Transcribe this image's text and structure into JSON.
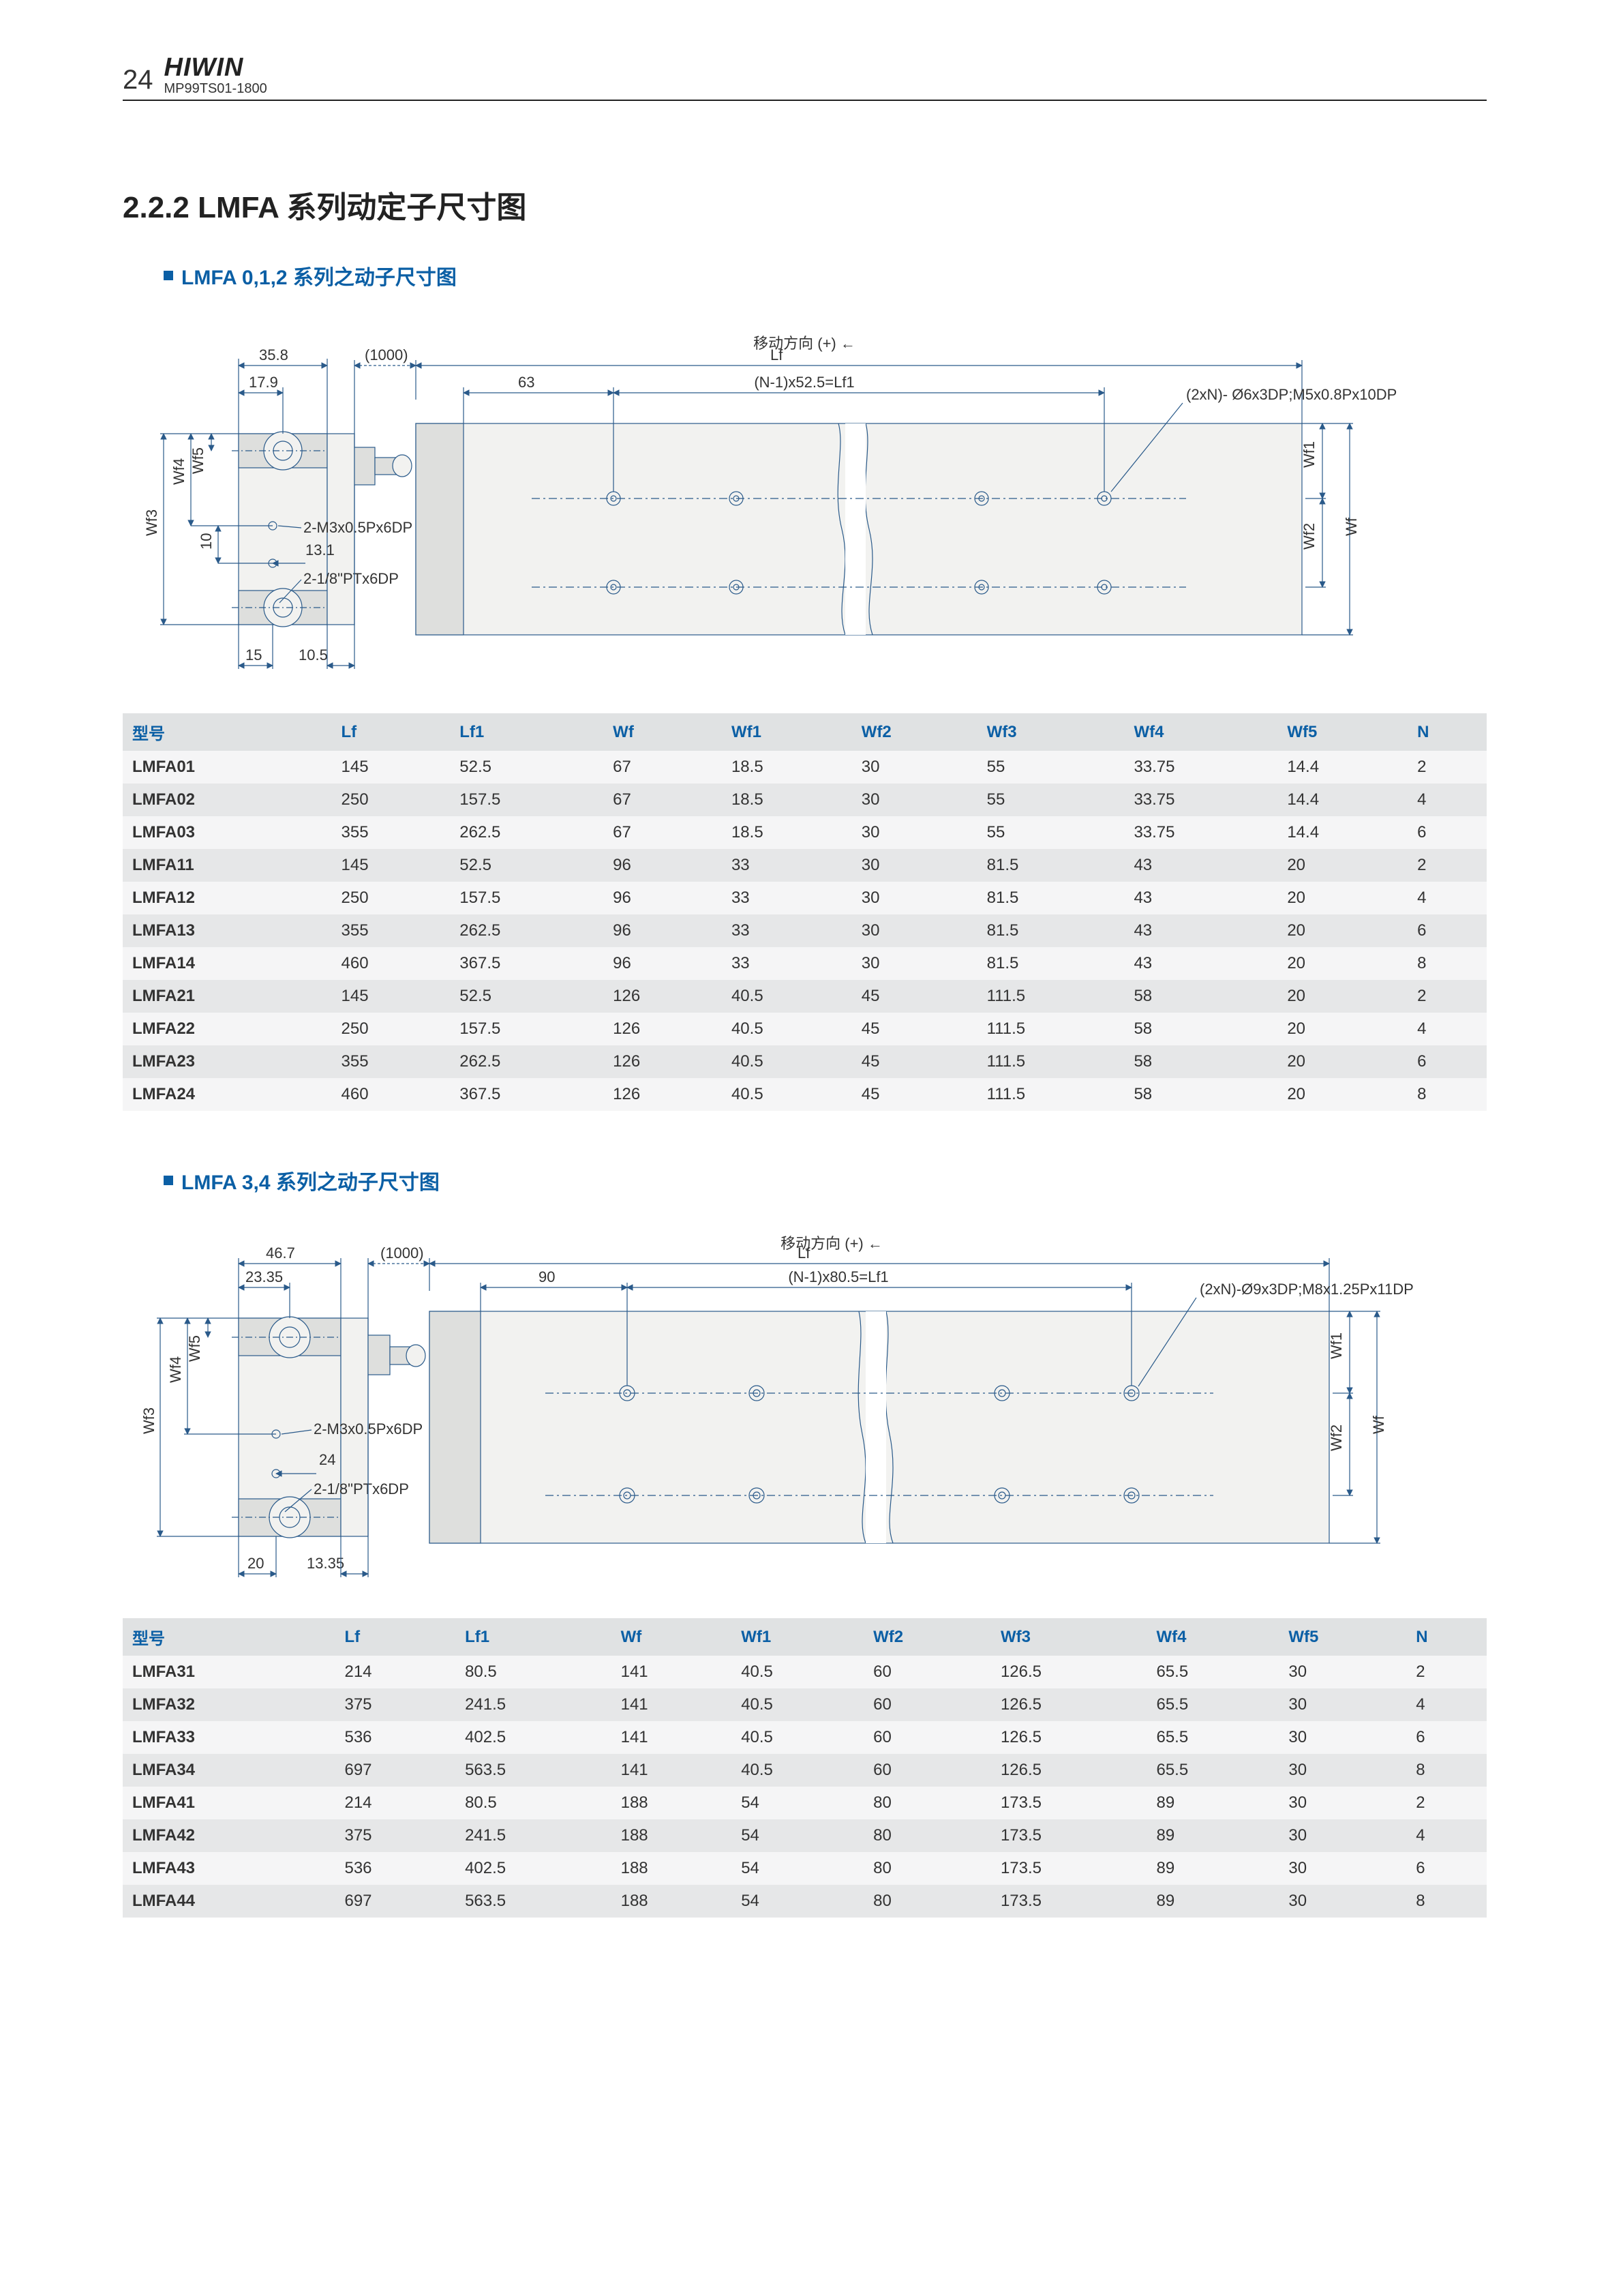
{
  "header": {
    "page_number": "24",
    "brand": "HIWIN",
    "doc_code": "MP99TS01-1800"
  },
  "section_title": "2.2.2  LMFA 系列动定子尺寸图",
  "sub1": {
    "title": "LMFA 0,1,2 系列之动子尺寸图"
  },
  "sub2": {
    "title": "LMFA 3,4 系列之动子尺寸图"
  },
  "diagram1": {
    "dim_358": "35.8",
    "dim_179": "17.9",
    "dim_1000": "(1000)",
    "dim_63": "63",
    "dim_Lf": "Lf",
    "dim_Lf1_expr": "(N-1)x52.5=Lf1",
    "move_dir": "移动方向 (+) ←",
    "thread_note": "(2xN)- Ø6x3DP;M5x0.8Px10DP",
    "thread_m3": "2-M3x0.5Px6DP",
    "thread_pt": "2-1/8\"PTx6DP",
    "dim_131": "13.1",
    "dim_10": "10",
    "dim_15": "15",
    "dim_105": "10.5",
    "lbl_Wf": "Wf",
    "lbl_Wf1": "Wf1",
    "lbl_Wf2": "Wf2",
    "lbl_Wf3": "Wf3",
    "lbl_Wf4": "Wf4",
    "lbl_Wf5": "Wf5",
    "colors": {
      "stroke": "#2a5a8a",
      "centerline": "#4a7fb0",
      "fill_body": "#f2f2f0",
      "fill_cap": "#dedfdd"
    }
  },
  "diagram2": {
    "dim_467": "46.7",
    "dim_2335": "23.35",
    "dim_1000": "(1000)",
    "dim_90": "90",
    "dim_Lf": "Lf",
    "dim_Lf1_expr": "(N-1)x80.5=Lf1",
    "move_dir": "移动方向 (+) ←",
    "thread_note": "(2xN)-Ø9x3DP;M8x1.25Px11DP",
    "thread_m3": "2-M3x0.5Px6DP",
    "thread_pt": "2-1/8\"PTx6DP",
    "dim_24": "24",
    "dim_20": "20",
    "dim_1335": "13.35",
    "lbl_Wf": "Wf",
    "lbl_Wf1": "Wf1",
    "lbl_Wf2": "Wf2",
    "lbl_Wf3": "Wf3",
    "lbl_Wf4": "Wf4",
    "lbl_Wf5": "Wf5"
  },
  "table_columns": [
    "型号",
    "Lf",
    "Lf1",
    "Wf",
    "Wf1",
    "Wf2",
    "Wf3",
    "Wf4",
    "Wf5",
    "N"
  ],
  "table1": {
    "rows": [
      [
        "LMFA01",
        "145",
        "52.5",
        "67",
        "18.5",
        "30",
        "55",
        "33.75",
        "14.4",
        "2"
      ],
      [
        "LMFA02",
        "250",
        "157.5",
        "67",
        "18.5",
        "30",
        "55",
        "33.75",
        "14.4",
        "4"
      ],
      [
        "LMFA03",
        "355",
        "262.5",
        "67",
        "18.5",
        "30",
        "55",
        "33.75",
        "14.4",
        "6"
      ],
      [
        "LMFA11",
        "145",
        "52.5",
        "96",
        "33",
        "30",
        "81.5",
        "43",
        "20",
        "2"
      ],
      [
        "LMFA12",
        "250",
        "157.5",
        "96",
        "33",
        "30",
        "81.5",
        "43",
        "20",
        "4"
      ],
      [
        "LMFA13",
        "355",
        "262.5",
        "96",
        "33",
        "30",
        "81.5",
        "43",
        "20",
        "6"
      ],
      [
        "LMFA14",
        "460",
        "367.5",
        "96",
        "33",
        "30",
        "81.5",
        "43",
        "20",
        "8"
      ],
      [
        "LMFA21",
        "145",
        "52.5",
        "126",
        "40.5",
        "45",
        "111.5",
        "58",
        "20",
        "2"
      ],
      [
        "LMFA22",
        "250",
        "157.5",
        "126",
        "40.5",
        "45",
        "111.5",
        "58",
        "20",
        "4"
      ],
      [
        "LMFA23",
        "355",
        "262.5",
        "126",
        "40.5",
        "45",
        "111.5",
        "58",
        "20",
        "6"
      ],
      [
        "LMFA24",
        "460",
        "367.5",
        "126",
        "40.5",
        "45",
        "111.5",
        "58",
        "20",
        "8"
      ]
    ]
  },
  "table2": {
    "rows": [
      [
        "LMFA31",
        "214",
        "80.5",
        "141",
        "40.5",
        "60",
        "126.5",
        "65.5",
        "30",
        "2"
      ],
      [
        "LMFA32",
        "375",
        "241.5",
        "141",
        "40.5",
        "60",
        "126.5",
        "65.5",
        "30",
        "4"
      ],
      [
        "LMFA33",
        "536",
        "402.5",
        "141",
        "40.5",
        "60",
        "126.5",
        "65.5",
        "30",
        "6"
      ],
      [
        "LMFA34",
        "697",
        "563.5",
        "141",
        "40.5",
        "60",
        "126.5",
        "65.5",
        "30",
        "8"
      ],
      [
        "LMFA41",
        "214",
        "80.5",
        "188",
        "54",
        "80",
        "173.5",
        "89",
        "30",
        "2"
      ],
      [
        "LMFA42",
        "375",
        "241.5",
        "188",
        "54",
        "80",
        "173.5",
        "89",
        "30",
        "4"
      ],
      [
        "LMFA43",
        "536",
        "402.5",
        "188",
        "54",
        "80",
        "173.5",
        "89",
        "30",
        "6"
      ],
      [
        "LMFA44",
        "697",
        "563.5",
        "188",
        "54",
        "80",
        "173.5",
        "89",
        "30",
        "8"
      ]
    ]
  }
}
